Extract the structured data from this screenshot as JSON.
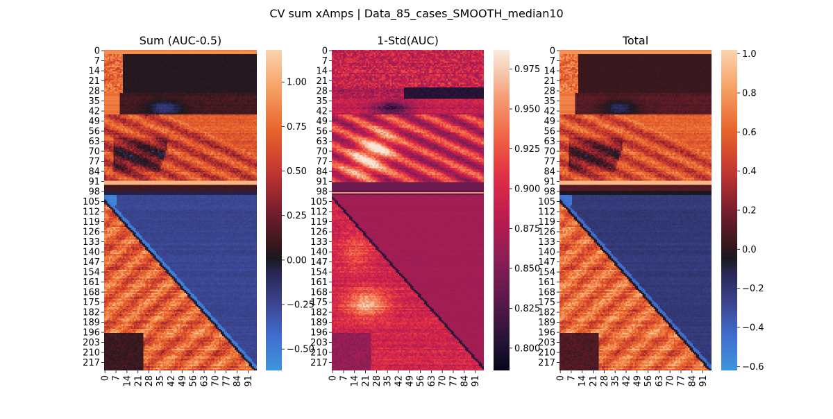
{
  "figure_title": "CV sum xAmps | Data_85_cases_SMOOTH_median10",
  "chart_data": [
    {
      "type": "heatmap",
      "title": "Sum (AUC-0.5)",
      "rows": 223,
      "cols": 97,
      "y_tick_labels": [
        "0",
        "7",
        "14",
        "21",
        "28",
        "35",
        "42",
        "49",
        "56",
        "63",
        "70",
        "77",
        "84",
        "91",
        "98",
        "105",
        "112",
        "119",
        "126",
        "133",
        "140",
        "147",
        "154",
        "161",
        "168",
        "175",
        "182",
        "189",
        "196",
        "203",
        "210",
        "217"
      ],
      "x_tick_labels": [
        "0",
        "7",
        "14",
        "21",
        "28",
        "35",
        "42",
        "49",
        "56",
        "63",
        "70",
        "77",
        "84",
        "91"
      ],
      "colorbar": {
        "min": -0.62,
        "max": 1.18,
        "ticks": [
          -0.5,
          -0.25,
          0.0,
          0.25,
          0.5,
          0.75,
          1.0
        ],
        "tick_labels": [
          "−0.50",
          "−0.25",
          "0.00",
          "0.25",
          "0.50",
          "0.75",
          "1.00"
        ],
        "colormap": "icefire"
      },
      "pattern": "sum"
    },
    {
      "type": "heatmap",
      "title": "1-Std(AUC)",
      "rows": 223,
      "cols": 97,
      "y_tick_labels": [
        "0",
        "7",
        "14",
        "21",
        "28",
        "35",
        "42",
        "49",
        "56",
        "63",
        "70",
        "77",
        "84",
        "91",
        "98",
        "105",
        "112",
        "119",
        "126",
        "133",
        "140",
        "147",
        "154",
        "161",
        "168",
        "175",
        "182",
        "189",
        "196",
        "203",
        "210",
        "217"
      ],
      "x_tick_labels": [
        "0",
        "7",
        "14",
        "21",
        "28",
        "35",
        "42",
        "49",
        "56",
        "63",
        "70",
        "77",
        "84",
        "91"
      ],
      "colorbar": {
        "min": 0.786,
        "max": 0.987,
        "ticks": [
          0.8,
          0.825,
          0.85,
          0.875,
          0.9,
          0.925,
          0.95,
          0.975
        ],
        "tick_labels": [
          "0.800",
          "0.825",
          "0.850",
          "0.875",
          "0.900",
          "0.925",
          "0.950",
          "0.975"
        ],
        "colormap": "rocket"
      },
      "pattern": "std"
    },
    {
      "type": "heatmap",
      "title": "Total",
      "rows": 223,
      "cols": 97,
      "y_tick_labels": [
        "0",
        "7",
        "14",
        "21",
        "28",
        "35",
        "42",
        "49",
        "56",
        "63",
        "70",
        "77",
        "84",
        "91",
        "98",
        "105",
        "112",
        "119",
        "126",
        "133",
        "140",
        "147",
        "154",
        "161",
        "168",
        "175",
        "182",
        "189",
        "196",
        "203",
        "210",
        "217"
      ],
      "x_tick_labels": [
        "0",
        "7",
        "14",
        "21",
        "28",
        "35",
        "42",
        "49",
        "56",
        "63",
        "70",
        "77",
        "84",
        "91"
      ],
      "colorbar": {
        "min": -0.62,
        "max": 1.02,
        "ticks": [
          -0.6,
          -0.4,
          -0.2,
          0.0,
          0.2,
          0.4,
          0.6,
          0.8,
          1.0
        ],
        "tick_labels": [
          "−0.6",
          "−0.4",
          "−0.2",
          "0.0",
          "0.2",
          "0.4",
          "0.6",
          "0.8",
          "1.0"
        ],
        "colormap": "icefire"
      },
      "pattern": "sum"
    }
  ]
}
